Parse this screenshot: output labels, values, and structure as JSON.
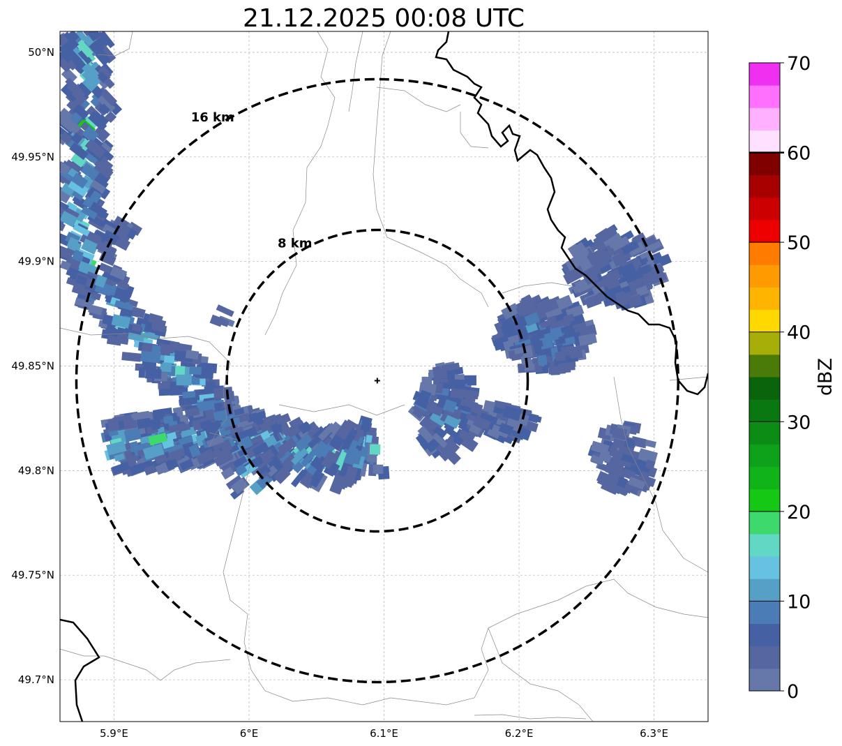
{
  "title": "21.12.2025 00:08 UTC",
  "map": {
    "lon_range": [
      5.86,
      6.34
    ],
    "lat_range": [
      49.68,
      50.01
    ],
    "radar_site": {
      "lon": 6.095,
      "lat": 49.843
    },
    "grid": "on",
    "lon_ticks": [
      {
        "value": 5.9,
        "label": "5.9°E"
      },
      {
        "value": 6.0,
        "label": "6°E"
      },
      {
        "value": 6.1,
        "label": "6.1°E"
      },
      {
        "value": 6.2,
        "label": "6.2°E"
      },
      {
        "value": 6.3,
        "label": "6.3°E"
      }
    ],
    "lat_ticks": [
      {
        "value": 49.7,
        "label": "49.7°N"
      },
      {
        "value": 49.75,
        "label": "49.75°N"
      },
      {
        "value": 49.8,
        "label": "49.8°N"
      },
      {
        "value": 49.85,
        "label": "49.85°N"
      },
      {
        "value": 49.9,
        "label": "49.9°N"
      },
      {
        "value": 49.95,
        "label": "49.95°N"
      },
      {
        "value": 50.0,
        "label": "50°N"
      }
    ],
    "range_rings": [
      {
        "radius_km": 8,
        "label": "8 km"
      },
      {
        "radius_km": 16,
        "label": "16 km"
      }
    ],
    "echo_regions": [
      {
        "name": "west-band",
        "max_dbz": 23
      },
      {
        "name": "south-band",
        "max_dbz": 22
      },
      {
        "name": "east-cell",
        "max_dbz": 14
      },
      {
        "name": "northeast-cell",
        "max_dbz": 8
      },
      {
        "name": "southeast-cell",
        "max_dbz": 6
      },
      {
        "name": "central-south-cell",
        "max_dbz": 15
      }
    ]
  },
  "colorbar": {
    "label": "dBZ",
    "min": 0,
    "max": 70,
    "step": 2.5,
    "tick_values": [
      0,
      10,
      20,
      30,
      40,
      50,
      60,
      70
    ],
    "tick_labels": [
      "0",
      "10",
      "20",
      "30",
      "40",
      "50",
      "60",
      "70"
    ],
    "colors": [
      "#6677aa",
      "#5566a0",
      "#4660a4",
      "#4c7cb6",
      "#56a0c8",
      "#66c2e0",
      "#62d8c4",
      "#3ed96c",
      "#14c814",
      "#10b418",
      "#0ea21a",
      "#0c8c14",
      "#0a7810",
      "#0a640c",
      "#4a7a08",
      "#a8ae08",
      "#ffd800",
      "#ffb400",
      "#ff9a00",
      "#ff7c00",
      "#ee0000",
      "#cc0000",
      "#a80000",
      "#800000",
      "#ffe0ff",
      "#ffb0ff",
      "#ff70ff",
      "#f030f0"
    ]
  }
}
